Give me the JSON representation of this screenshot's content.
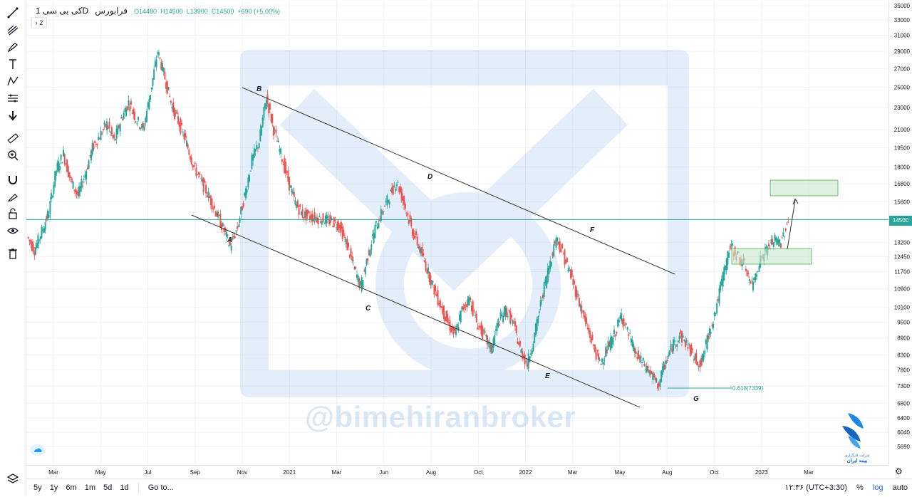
{
  "legend": {
    "symbol": "فرابورس",
    "interval": "1D",
    "name": "کی بی سی",
    "open": "O14480",
    "high": "H14500",
    "low": "L13900",
    "close": "C14500",
    "change": "+690 (+5.00%)",
    "indicators_collapsed": "2"
  },
  "watermark": "@bimehiranbroker",
  "logo_text": [
    "شرکت کارگزاری",
    "بیمه ایران"
  ],
  "bottom_bar": {
    "ranges": [
      "5y",
      "1y",
      "6m",
      "1m",
      "5d",
      "1d"
    ],
    "goto": "Go to...",
    "clock": "۱۲:۳۶ (UTC+3:30)",
    "percent": "%",
    "log": "log",
    "auto": "auto"
  },
  "colors": {
    "up": "#26a69a",
    "down": "#ef5350",
    "price_line": "#26a69a",
    "box_fill": "#c8e6c9",
    "box_border": "#4caf50"
  },
  "current_price_label": "14500",
  "fib_label": "0.618(7339)",
  "chart_data": {
    "type": "candlestick",
    "title": "کی بی سی",
    "y_scale": "log",
    "ylim": [
      5400,
      35000
    ],
    "y_ticks": [
      "35000",
      "33000",
      "31000",
      "29000",
      "27000",
      "25000",
      "23000",
      "21000",
      "19500",
      "18000",
      "16800",
      "15600",
      "14500",
      "13200",
      "12450",
      "11700",
      "10900",
      "10100",
      "9500",
      "8900",
      "8300",
      "7800",
      "7300",
      "6800",
      "6400",
      "6040",
      "5690"
    ],
    "x_ticks": [
      "Mar",
      "May",
      "Jul",
      "Sep",
      "Nov",
      "2021",
      "Mar",
      "Jun",
      "Aug",
      "Oct",
      "2022",
      "Mar",
      "May",
      "Aug",
      "Oct",
      "2023",
      "Mar"
    ],
    "swing_points": [
      {
        "label": "A",
        "price": 12700
      },
      {
        "label": "B",
        "price": 24000
      },
      {
        "label": "C",
        "price": 10000
      },
      {
        "label": "D",
        "price": 17000
      },
      {
        "label": "E",
        "price": 7900
      },
      {
        "label": "F",
        "price": 13500
      },
      {
        "label": "G",
        "price": 7200
      }
    ],
    "series_close": [
      13500,
      12800,
      13800,
      15000,
      17800,
      19000,
      17000,
      16000,
      17500,
      19500,
      20500,
      21500,
      20000,
      22000,
      23500,
      22000,
      21000,
      24500,
      29000,
      26000,
      23000,
      21500,
      19800,
      18000,
      17000,
      16000,
      15000,
      14000,
      13000,
      14000,
      16000,
      18500,
      20000,
      24000,
      21000,
      19000,
      17000,
      15500,
      14800,
      14700,
      14600,
      14500,
      14400,
      14200,
      13200,
      12000,
      11000,
      12500,
      14000,
      15000,
      16000,
      17000,
      15500,
      14000,
      13000,
      12000,
      11000,
      10200,
      9500,
      9000,
      10000,
      10500,
      9500,
      9000,
      8500,
      9500,
      10000,
      9500,
      8500,
      8000,
      9000,
      10500,
      12000,
      13500,
      12500,
      11500,
      10500,
      9500,
      8700,
      8000,
      8500,
      9000,
      9800,
      9000,
      8300,
      8000,
      7700,
      7300,
      8000,
      8600,
      9000,
      8700,
      8200,
      8000,
      9000,
      10000,
      11500,
      13000,
      12500,
      12000,
      11000,
      12200,
      12800,
      13300,
      13200,
      14500
    ]
  }
}
